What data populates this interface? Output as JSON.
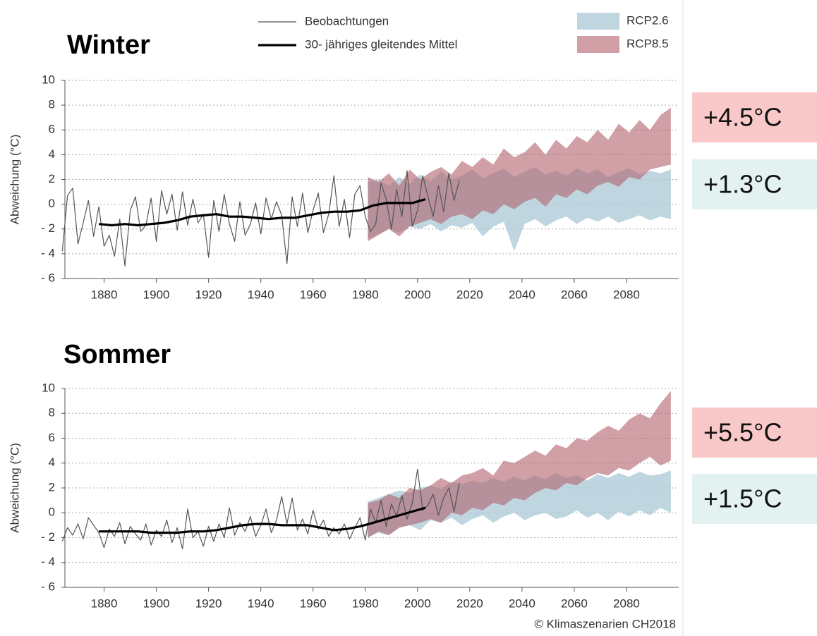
{
  "chart_data": [
    {
      "type": "line",
      "title": "Winter",
      "y_label": "Abweichung (°C)",
      "xlim": [
        1865,
        2100
      ],
      "ylim": [
        -6,
        10
      ],
      "xticks": [
        1880,
        1900,
        1920,
        1940,
        1960,
        1980,
        2000,
        2020,
        2040,
        2060,
        2080
      ],
      "yticks": [
        {
          "value": -6,
          "label": "- 6"
        },
        {
          "value": -4,
          "label": "- 4"
        },
        {
          "value": -2,
          "label": "- 2"
        },
        0,
        2,
        4,
        6,
        8,
        10
      ],
      "grid": true,
      "series": [
        {
          "name": "Beobachtungen",
          "color": "#555555",
          "x": [
            1864,
            1866,
            1868,
            1870,
            1872,
            1874,
            1876,
            1878,
            1880,
            1882,
            1884,
            1886,
            1888,
            1890,
            1892,
            1894,
            1896,
            1898,
            1900,
            1902,
            1904,
            1906,
            1908,
            1910,
            1912,
            1914,
            1916,
            1918,
            1920,
            1922,
            1924,
            1926,
            1928,
            1930,
            1932,
            1934,
            1936,
            1938,
            1940,
            1942,
            1944,
            1946,
            1948,
            1950,
            1952,
            1954,
            1956,
            1958,
            1960,
            1962,
            1964,
            1966,
            1968,
            1970,
            1972,
            1974,
            1976,
            1978,
            1980,
            1982,
            1984,
            1986,
            1988,
            1990,
            1992,
            1994,
            1996,
            1998,
            2000,
            2002,
            2004,
            2006,
            2008,
            2010,
            2012,
            2014,
            2016
          ],
          "values": [
            -3.8,
            0.7,
            1.3,
            -3.2,
            -1.5,
            0.3,
            -2.6,
            -0.2,
            -3.4,
            -2.5,
            -4.2,
            -1.2,
            -5,
            -0.5,
            0.6,
            -2.2,
            -1.7,
            0.5,
            -3,
            1.1,
            -0.8,
            0.8,
            -2.1,
            1,
            -1.7,
            0.4,
            -1.5,
            -0.8,
            -4.3,
            0.3,
            -2.2,
            0.8,
            -1.6,
            -3,
            0.2,
            -2.5,
            -1.6,
            0.1,
            -2.4,
            0.5,
            -1.2,
            0.2,
            -0.9,
            -4.8,
            0.6,
            -1.8,
            0.9,
            -2.3,
            -0.5,
            0.9,
            -2.3,
            -0.8,
            2.3,
            -1.8,
            0.4,
            -2.7,
            0.8,
            1.5,
            -1,
            -2.2,
            -1.6,
            1.7,
            0.4,
            -2,
            1.2,
            -1,
            2.7,
            -1.8,
            -0.5,
            2.3,
            0.6,
            -1,
            1.5,
            -0.6,
            2.5,
            0.3,
            1.9
          ]
        },
        {
          "name": "30- jähriges gleitendes Mittel",
          "color": "#000000",
          "x": [
            1878,
            1883,
            1888,
            1893,
            1898,
            1903,
            1908,
            1913,
            1918,
            1923,
            1928,
            1933,
            1938,
            1943,
            1948,
            1953,
            1958,
            1963,
            1968,
            1973,
            1978,
            1983,
            1988,
            1993,
            1998,
            2003
          ],
          "values": [
            -1.6,
            -1.7,
            -1.6,
            -1.7,
            -1.6,
            -1.5,
            -1.3,
            -1.0,
            -0.9,
            -0.8,
            -1.0,
            -1.0,
            -1.1,
            -1.2,
            -1.1,
            -1.1,
            -0.9,
            -0.7,
            -0.6,
            -0.6,
            -0.5,
            -0.1,
            0.1,
            0.1,
            0.1,
            0.4
          ]
        }
      ],
      "bands": [
        {
          "name": "RCP2.6",
          "color": "#a9c8d6",
          "x": [
            1981,
            1985,
            1989,
            1993,
            1997,
            2001,
            2005,
            2009,
            2013,
            2017,
            2021,
            2025,
            2029,
            2033,
            2037,
            2041,
            2045,
            2049,
            2053,
            2057,
            2061,
            2065,
            2069,
            2073,
            2077,
            2081,
            2085,
            2089,
            2093,
            2097
          ],
          "lower": [
            -2.8,
            -2.4,
            -2.0,
            -2.3,
            -1.8,
            -2.0,
            -1.6,
            -2.2,
            -1.7,
            -1.9,
            -1.5,
            -2.6,
            -1.8,
            -1.4,
            -3.8,
            -1.6,
            -1.2,
            -1.8,
            -1.3,
            -1.0,
            -1.6,
            -1.1,
            -1.4,
            -1.0,
            -1.5,
            -1.2,
            -0.9,
            -1.3,
            -1.0,
            -1.2
          ],
          "upper": [
            1.8,
            2.0,
            1.5,
            2.2,
            1.6,
            2.4,
            1.8,
            2.6,
            2.0,
            2.3,
            2.8,
            2.1,
            2.5,
            2.9,
            2.2,
            2.6,
            3.0,
            2.4,
            2.7,
            2.3,
            2.9,
            2.5,
            2.8,
            2.2,
            2.6,
            2.9,
            2.4,
            2.7,
            2.5,
            2.8
          ]
        },
        {
          "name": "RCP8.5",
          "color": "#b0606a",
          "x": [
            1981,
            1985,
            1989,
            1993,
            1997,
            2001,
            2005,
            2009,
            2013,
            2017,
            2021,
            2025,
            2029,
            2033,
            2037,
            2041,
            2045,
            2049,
            2053,
            2057,
            2061,
            2065,
            2069,
            2073,
            2077,
            2081,
            2085,
            2089,
            2093,
            2097
          ],
          "lower": [
            -3.0,
            -2.5,
            -2.0,
            -2.6,
            -1.8,
            -1.5,
            -1.2,
            -1.6,
            -1.0,
            -0.8,
            -1.2,
            -0.5,
            -0.8,
            0.0,
            -0.4,
            0.2,
            0.5,
            -0.2,
            0.8,
            0.5,
            1.2,
            0.8,
            1.5,
            1.8,
            1.4,
            2.2,
            2.0,
            2.8,
            3.0,
            3.2
          ],
          "upper": [
            2.2,
            1.8,
            2.5,
            1.5,
            2.8,
            2.0,
            2.6,
            3.0,
            2.4,
            3.5,
            3.0,
            3.8,
            3.2,
            4.5,
            3.8,
            4.2,
            5.0,
            4.0,
            5.2,
            4.5,
            5.5,
            5.0,
            6.0,
            5.2,
            6.5,
            5.8,
            6.8,
            6.0,
            7.2,
            7.8
          ]
        }
      ],
      "annotations": [
        {
          "text": "+4.5°C",
          "color": "#f9c9c9"
        },
        {
          "text": "+1.3°C",
          "color": "#e3f1f1"
        }
      ]
    },
    {
      "type": "line",
      "title": "Sommer",
      "y_label": "Abweichung (°C)",
      "xlim": [
        1865,
        2100
      ],
      "ylim": [
        -6,
        10
      ],
      "xticks": [
        1880,
        1900,
        1920,
        1940,
        1960,
        1980,
        2000,
        2020,
        2040,
        2060,
        2080
      ],
      "yticks": [
        {
          "value": -6,
          "label": "- 6"
        },
        {
          "value": -4,
          "label": "- 4"
        },
        {
          "value": -2,
          "label": "- 2"
        },
        0,
        2,
        4,
        6,
        8,
        10
      ],
      "grid": true,
      "series": [
        {
          "color": "#555555",
          "x": [
            1864,
            1866,
            1868,
            1870,
            1872,
            1874,
            1876,
            1878,
            1880,
            1882,
            1884,
            1886,
            1888,
            1890,
            1892,
            1894,
            1896,
            1898,
            1900,
            1902,
            1904,
            1906,
            1908,
            1910,
            1912,
            1914,
            1916,
            1918,
            1920,
            1922,
            1924,
            1926,
            1928,
            1930,
            1932,
            1934,
            1936,
            1938,
            1940,
            1942,
            1944,
            1946,
            1948,
            1950,
            1952,
            1954,
            1956,
            1958,
            1960,
            1962,
            1964,
            1966,
            1968,
            1970,
            1972,
            1974,
            1976,
            1978,
            1980,
            1982,
            1984,
            1986,
            1988,
            1990,
            1992,
            1994,
            1996,
            1998,
            2000,
            2002,
            2004,
            2006,
            2008,
            2010,
            2012,
            2014,
            2016
          ],
          "values": [
            -2.3,
            -1.2,
            -1.8,
            -0.9,
            -2.1,
            -0.4,
            -1,
            -1.6,
            -2.8,
            -1.3,
            -1.9,
            -0.8,
            -2.5,
            -1.1,
            -1.7,
            -2.2,
            -0.9,
            -2.6,
            -1.4,
            -1.9,
            -0.6,
            -2.4,
            -1.2,
            -2.9,
            0.3,
            -2,
            -1.5,
            -2.7,
            -1.1,
            -2.3,
            -0.9,
            -2,
            0.4,
            -1.8,
            -0.8,
            -1.5,
            -0.3,
            -1.9,
            -1.0,
            0.3,
            -1.6,
            -0.6,
            1.3,
            -0.9,
            1.2,
            -1.4,
            -0.5,
            -1.7,
            0.2,
            -1.3,
            -0.6,
            -1.9,
            -1.2,
            -1.7,
            -0.9,
            -2.1,
            -1.2,
            -0.4,
            -2.2,
            0.3,
            -0.8,
            1.0,
            -1.1,
            0.7,
            -0.3,
            1.4,
            -0.5,
            0.8,
            3.5,
            0.2,
            0.6,
            1.5,
            -0.2,
            1.2,
            2.0,
            0.1,
            2.4
          ]
        },
        {
          "color": "#000000",
          "x": [
            1878,
            1883,
            1888,
            1893,
            1898,
            1903,
            1908,
            1913,
            1918,
            1923,
            1928,
            1933,
            1938,
            1943,
            1948,
            1953,
            1958,
            1963,
            1968,
            1973,
            1978,
            1983,
            1988,
            1993,
            1998,
            2003
          ],
          "values": [
            -1.5,
            -1.5,
            -1.5,
            -1.5,
            -1.6,
            -1.6,
            -1.6,
            -1.5,
            -1.5,
            -1.4,
            -1.2,
            -1.0,
            -0.9,
            -0.9,
            -1.0,
            -1.0,
            -1.0,
            -1.2,
            -1.4,
            -1.3,
            -1.1,
            -0.8,
            -0.5,
            -0.2,
            0.1,
            0.4
          ]
        }
      ],
      "bands": [
        {
          "color": "#a9c8d6",
          "x": [
            1981,
            1985,
            1989,
            1993,
            1997,
            2001,
            2005,
            2009,
            2013,
            2017,
            2021,
            2025,
            2029,
            2033,
            2037,
            2041,
            2045,
            2049,
            2053,
            2057,
            2061,
            2065,
            2069,
            2073,
            2077,
            2081,
            2085,
            2089,
            2093,
            2097
          ],
          "lower": [
            -2.0,
            -1.6,
            -1.8,
            -1.2,
            -1.0,
            -1.4,
            -0.6,
            -0.8,
            -0.4,
            -1.0,
            -0.5,
            -0.2,
            -0.8,
            -0.3,
            0.0,
            -0.6,
            -0.2,
            0.0,
            -0.5,
            -0.3,
            0.2,
            -0.4,
            0.0,
            -0.6,
            0.1,
            -0.3,
            0.2,
            -0.2,
            0.4,
            0.0
          ],
          "upper": [
            0.9,
            1.2,
            1.5,
            1.8,
            1.6,
            2.0,
            2.2,
            1.9,
            2.5,
            2.3,
            2.6,
            2.4,
            2.8,
            2.5,
            2.9,
            2.6,
            3.0,
            2.7,
            3.2,
            2.8,
            3.0,
            2.6,
            3.1,
            2.8,
            3.2,
            2.9,
            3.3,
            3.0,
            3.1,
            3.4
          ]
        },
        {
          "color": "#b0606a",
          "x": [
            1981,
            1985,
            1989,
            1993,
            1997,
            2001,
            2005,
            2009,
            2013,
            2017,
            2021,
            2025,
            2029,
            2033,
            2037,
            2041,
            2045,
            2049,
            2053,
            2057,
            2061,
            2065,
            2069,
            2073,
            2077,
            2081,
            2085,
            2089,
            2093,
            2097
          ],
          "lower": [
            -2.0,
            -1.5,
            -1.8,
            -1.2,
            -1.0,
            -0.8,
            -0.5,
            -0.8,
            0.0,
            -0.2,
            0.4,
            0.2,
            0.8,
            0.6,
            1.2,
            1.0,
            1.6,
            2.0,
            1.8,
            2.4,
            2.2,
            2.8,
            3.2,
            3.0,
            3.6,
            3.4,
            4.0,
            4.5,
            3.8,
            4.2
          ],
          "upper": [
            0.8,
            1.0,
            1.5,
            1.2,
            2.0,
            1.8,
            2.2,
            2.8,
            2.4,
            3.0,
            3.2,
            3.6,
            3.0,
            4.2,
            4.0,
            4.5,
            5.0,
            4.6,
            5.5,
            5.2,
            6.0,
            5.8,
            6.5,
            7.0,
            6.6,
            7.5,
            8.0,
            7.6,
            8.8,
            9.8
          ]
        }
      ],
      "annotations": [
        {
          "text": "+5.5°C",
          "color": "#f9c9c9"
        },
        {
          "text": "+1.5°C",
          "color": "#e3f1f1"
        }
      ],
      "source": "© Klimaszenarien CH2018"
    }
  ]
}
